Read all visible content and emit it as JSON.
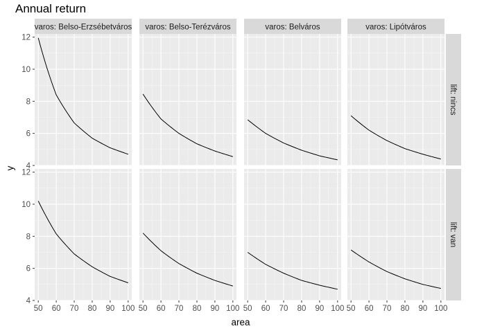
{
  "chart_data": {
    "type": "line",
    "title": "Annual return",
    "xlabel": "area",
    "ylabel": "y",
    "x_range": [
      50,
      100
    ],
    "xlim": [
      48,
      102
    ],
    "ylim": [
      4,
      12.2
    ],
    "x_ticks": [
      50,
      60,
      70,
      80,
      90,
      100
    ],
    "y_ticks": [
      4,
      6,
      8,
      10,
      12
    ],
    "grid": true,
    "facet_cols": {
      "label": "varos",
      "levels": [
        "Belso-Erzsébetváros",
        "Belso-Terézváros",
        "Belváros",
        "Lipótváros"
      ],
      "strip_labels": [
        "varos: Belso-Erzsébetváros",
        "varos: Belso-Terézváros",
        "varos: Belváros",
        "varos: Lipótváros"
      ]
    },
    "facet_rows": {
      "label": "lift",
      "levels": [
        "nincs",
        "van"
      ],
      "strip_labels": [
        "lift: nincs",
        "lift: van"
      ]
    },
    "panels": [
      {
        "row": 0,
        "col": 0,
        "x": [
          50,
          60,
          70,
          80,
          90,
          100
        ],
        "y": [
          11.95,
          8.4,
          6.65,
          5.7,
          5.1,
          4.7
        ]
      },
      {
        "row": 0,
        "col": 1,
        "x": [
          50,
          60,
          70,
          80,
          90,
          100
        ],
        "y": [
          8.45,
          6.9,
          6.0,
          5.35,
          4.9,
          4.55
        ]
      },
      {
        "row": 0,
        "col": 2,
        "x": [
          50,
          60,
          70,
          80,
          90,
          100
        ],
        "y": [
          6.85,
          6.0,
          5.4,
          4.95,
          4.6,
          4.35
        ]
      },
      {
        "row": 0,
        "col": 3,
        "x": [
          50,
          60,
          70,
          80,
          90,
          100
        ],
        "y": [
          7.1,
          6.2,
          5.55,
          5.05,
          4.7,
          4.4
        ]
      },
      {
        "row": 1,
        "col": 0,
        "x": [
          50,
          60,
          70,
          80,
          90,
          100
        ],
        "y": [
          10.2,
          8.15,
          6.9,
          6.1,
          5.5,
          5.1
        ]
      },
      {
        "row": 1,
        "col": 1,
        "x": [
          50,
          60,
          70,
          80,
          90,
          100
        ],
        "y": [
          8.2,
          7.1,
          6.3,
          5.7,
          5.25,
          4.9
        ]
      },
      {
        "row": 1,
        "col": 2,
        "x": [
          50,
          60,
          70,
          80,
          90,
          100
        ],
        "y": [
          7.0,
          6.25,
          5.7,
          5.25,
          4.95,
          4.7
        ]
      },
      {
        "row": 1,
        "col": 3,
        "x": [
          50,
          60,
          70,
          80,
          90,
          100
        ],
        "y": [
          7.15,
          6.4,
          5.8,
          5.35,
          5.0,
          4.75
        ]
      }
    ]
  }
}
